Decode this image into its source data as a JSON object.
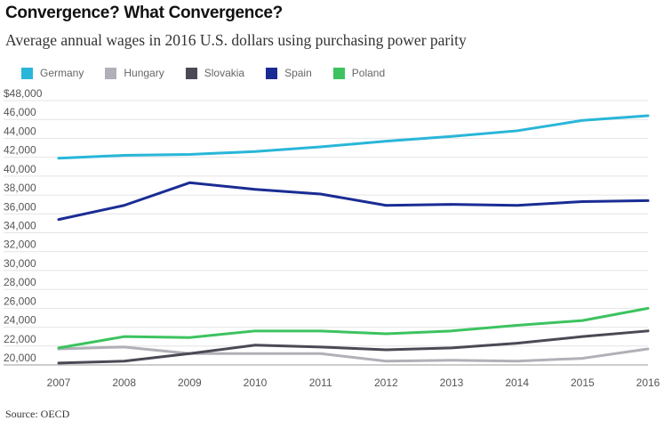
{
  "chart_data": {
    "type": "line",
    "title": "Convergence? What Convergence?",
    "subtitle": "Average annual wages in 2016 U.S. dollars using purchasing power parity",
    "source": "Source: OECD",
    "xlabel": "",
    "ylabel": "",
    "x": [
      "2007",
      "2008",
      "2009",
      "2010",
      "2011",
      "2012",
      "2013",
      "2014",
      "2015",
      "2016"
    ],
    "ylim": [
      20000,
      48000
    ],
    "ytick_values": [
      20000,
      22000,
      24000,
      26000,
      28000,
      30000,
      32000,
      34000,
      36000,
      38000,
      40000,
      42000,
      44000,
      46000,
      48000
    ],
    "ytick_labels": [
      "20,000",
      "22,000",
      "24,000",
      "26,000",
      "28,000",
      "30,000",
      "32,000",
      "34,000",
      "36,000",
      "38,000",
      "40,000",
      "42,000",
      "44,000",
      "46,000",
      "$48,000"
    ],
    "grid": true,
    "legend_position": "top-left",
    "series": [
      {
        "name": "Germany",
        "color": "#29b6d8",
        "values": [
          41900,
          42200,
          42300,
          42600,
          43100,
          43700,
          44200,
          44800,
          45900,
          46400
        ]
      },
      {
        "name": "Hungary",
        "color": "#b0b0b8",
        "values": [
          21700,
          21900,
          21200,
          21200,
          21200,
          20400,
          20500,
          20400,
          20700,
          21700
        ]
      },
      {
        "name": "Slovakia",
        "color": "#4a4a55",
        "values": [
          20200,
          20400,
          21200,
          22100,
          21900,
          21600,
          21800,
          22300,
          23000,
          23600
        ]
      },
      {
        "name": "Spain",
        "color": "#1a2c94",
        "values": [
          35400,
          36900,
          39300,
          38600,
          38100,
          36900,
          37000,
          36900,
          37300,
          37400
        ]
      },
      {
        "name": "Poland",
        "color": "#3cc35f",
        "values": [
          21800,
          23000,
          22900,
          23600,
          23600,
          23300,
          23600,
          24200,
          24700,
          26000
        ]
      }
    ]
  }
}
